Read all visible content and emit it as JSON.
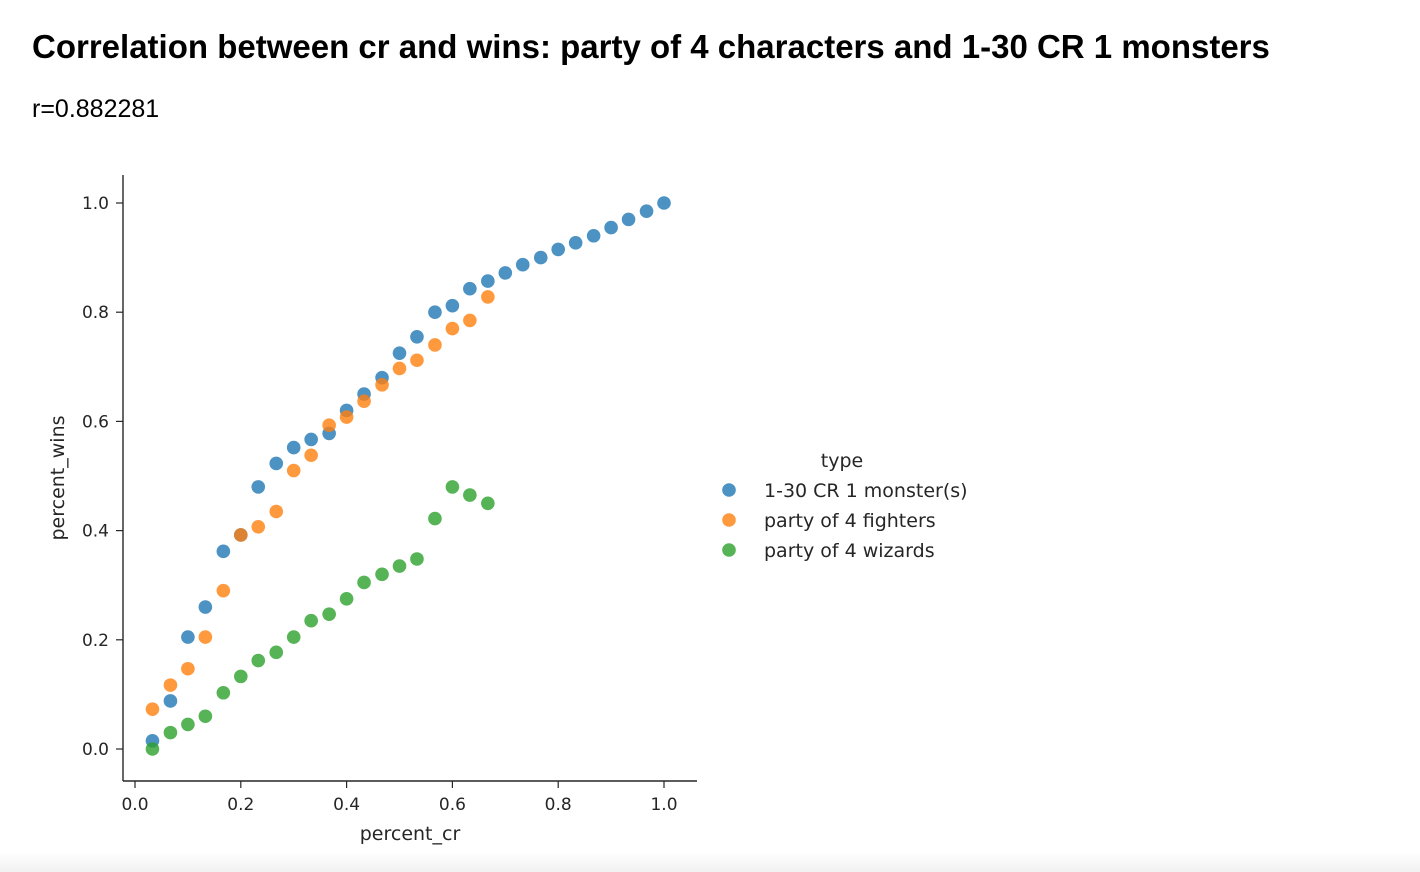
{
  "header": {
    "title": "Correlation between cr and wins: party of 4 characters and 1-30 CR 1 monsters",
    "subtitle": "r=0.882281"
  },
  "chart_data": {
    "type": "scatter",
    "xlabel": "percent_cr",
    "ylabel": "percent_wins",
    "xlim": [
      -0.02,
      1.06
    ],
    "ylim": [
      -0.06,
      1.05
    ],
    "xticks": [
      0.0,
      0.2,
      0.4,
      0.6,
      0.8,
      1.0
    ],
    "yticks": [
      0.0,
      0.2,
      0.4,
      0.6,
      0.8,
      1.0
    ],
    "tick_labels_x": [
      "0.0",
      "0.2",
      "0.4",
      "0.6",
      "0.8",
      "1.0"
    ],
    "tick_labels_y": [
      "0.0",
      "0.2",
      "0.4",
      "0.6",
      "0.8",
      "1.0"
    ],
    "grid": false,
    "legend": {
      "title": "type",
      "placement": "right"
    },
    "series": [
      {
        "name": "1-30 CR 1 monster(s)",
        "color": "#1f77b4",
        "x": [
          0.033,
          0.067,
          0.1,
          0.133,
          0.167,
          0.2,
          0.233,
          0.267,
          0.3,
          0.333,
          0.367,
          0.4,
          0.433,
          0.467,
          0.5,
          0.533,
          0.567,
          0.6,
          0.633,
          0.667,
          0.7,
          0.733,
          0.767,
          0.8,
          0.833,
          0.867,
          0.9,
          0.933,
          0.967,
          1.0
        ],
        "y": [
          0.015,
          0.088,
          0.205,
          0.26,
          0.362,
          0.392,
          0.48,
          0.523,
          0.552,
          0.567,
          0.578,
          0.62,
          0.65,
          0.68,
          0.725,
          0.755,
          0.8,
          0.812,
          0.843,
          0.857,
          0.872,
          0.887,
          0.9,
          0.915,
          0.927,
          0.94,
          0.955,
          0.97,
          0.985,
          1.0
        ]
      },
      {
        "name": "party of 4 fighters",
        "color": "#ff7f0e",
        "x": [
          0.033,
          0.067,
          0.1,
          0.133,
          0.167,
          0.2,
          0.233,
          0.267,
          0.3,
          0.333,
          0.367,
          0.4,
          0.433,
          0.467,
          0.5,
          0.533,
          0.567,
          0.6,
          0.633,
          0.667
        ],
        "y": [
          0.073,
          0.117,
          0.147,
          0.205,
          0.29,
          0.392,
          0.407,
          0.435,
          0.51,
          0.538,
          0.593,
          0.608,
          0.637,
          0.667,
          0.697,
          0.712,
          0.74,
          0.77,
          0.785,
          0.828
        ]
      },
      {
        "name": "party of 4 wizards",
        "color": "#2ca02c",
        "x": [
          0.033,
          0.067,
          0.1,
          0.133,
          0.167,
          0.2,
          0.233,
          0.267,
          0.3,
          0.333,
          0.367,
          0.4,
          0.433,
          0.467,
          0.5,
          0.533,
          0.567,
          0.6,
          0.633,
          0.667
        ],
        "y": [
          0.0,
          0.03,
          0.045,
          0.06,
          0.103,
          0.133,
          0.162,
          0.177,
          0.205,
          0.235,
          0.247,
          0.275,
          0.305,
          0.32,
          0.335,
          0.348,
          0.422,
          0.48,
          0.465,
          0.45
        ]
      }
    ]
  }
}
